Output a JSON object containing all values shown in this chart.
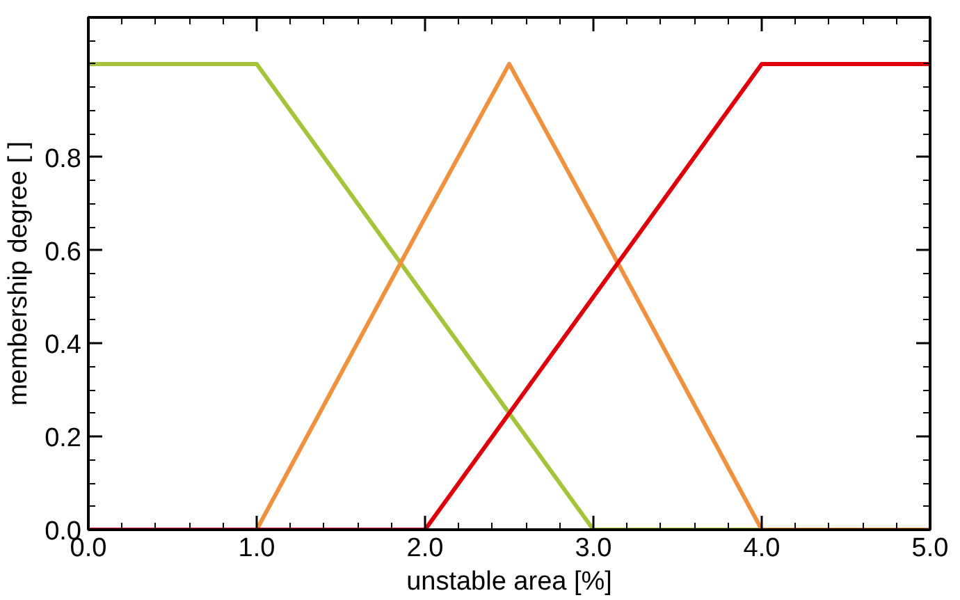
{
  "chart_data": {
    "type": "line",
    "xlabel": "unstable area [%]",
    "ylabel": "membership degree [ ]",
    "x": [
      0,
      1,
      2,
      2.5,
      3,
      4,
      5
    ],
    "series": [
      {
        "color": "#a5c43a",
        "values": [
          1,
          1,
          0.5,
          0.25,
          0,
          0,
          0
        ]
      },
      {
        "color": "#f0913f",
        "values": [
          0,
          0,
          0.67,
          1,
          0.67,
          0,
          0
        ]
      },
      {
        "color": "#e0000a",
        "values": [
          0,
          0,
          0,
          0.25,
          0.5,
          1,
          1
        ]
      }
    ],
    "xlim": [
      0,
      5
    ],
    "ylim": [
      0,
      1.1
    ],
    "xticks": [
      {
        "value": 0,
        "label": "0.0"
      },
      {
        "value": 1,
        "label": "1.0"
      },
      {
        "value": 2,
        "label": "2.0"
      },
      {
        "value": 3,
        "label": "3.0"
      },
      {
        "value": 4,
        "label": "4.0"
      },
      {
        "value": 5,
        "label": "5.0"
      }
    ],
    "yticks": [
      {
        "value": 0,
        "label": "0.0"
      },
      {
        "value": 0.2,
        "label": "0.2"
      },
      {
        "value": 0.4,
        "label": "0.4"
      },
      {
        "value": 0.6,
        "label": "0.6"
      },
      {
        "value": 0.8,
        "label": "0.8"
      }
    ],
    "line_style": "solid"
  }
}
